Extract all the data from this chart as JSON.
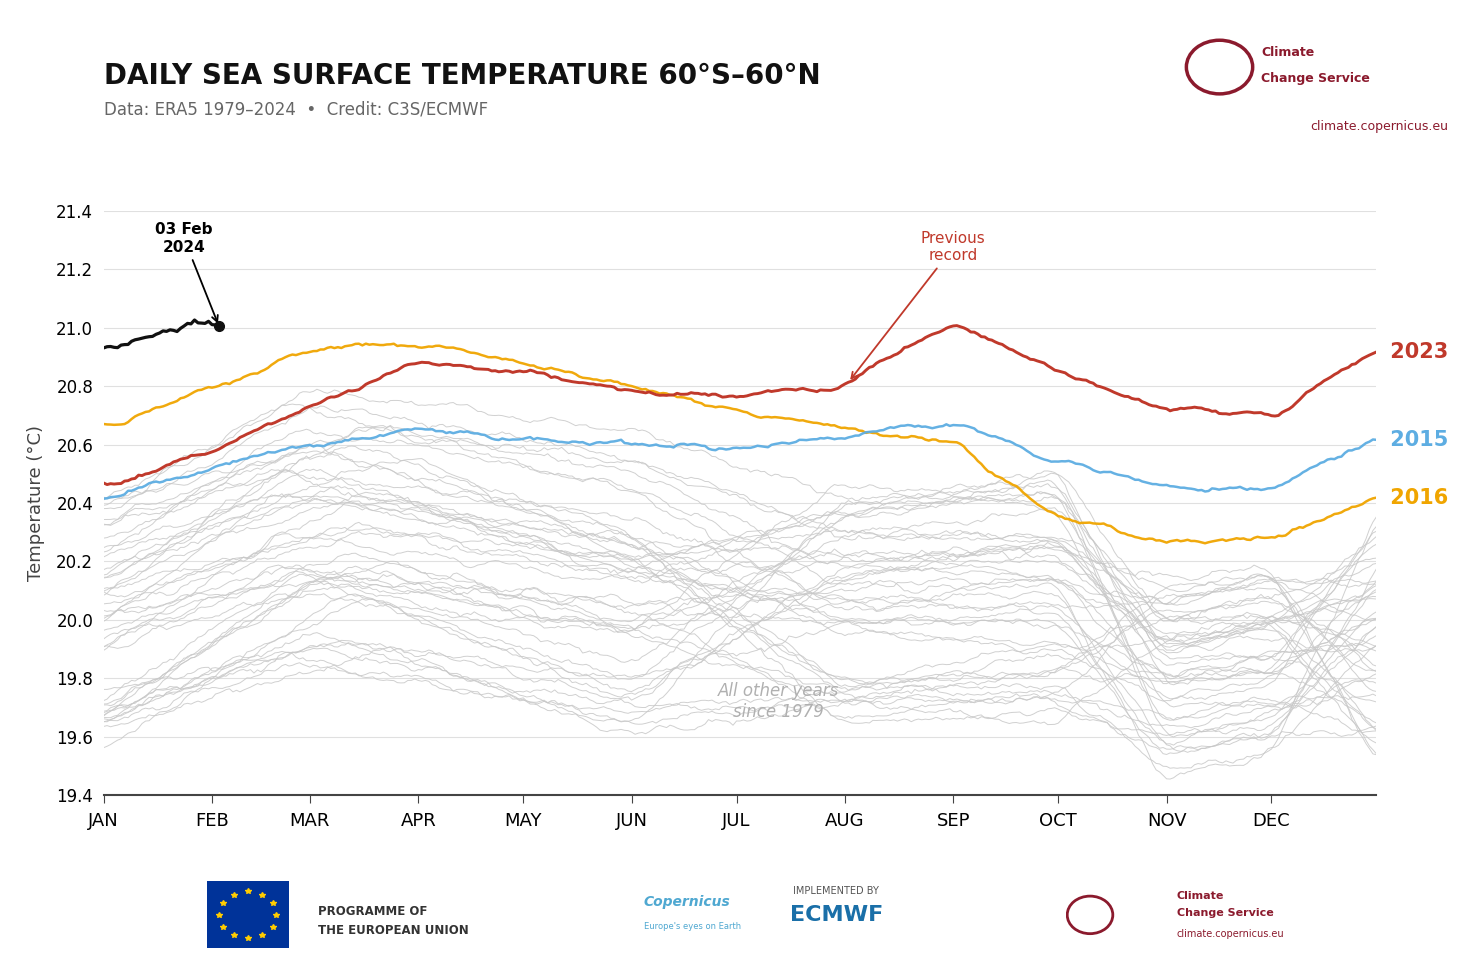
{
  "title": "DAILY SEA SURFACE TEMPERATURE 60°S–60°N",
  "subtitle": "Data: ERA5 1979–2024  •  Credit: C3S/ECMWF",
  "ylabel": "Temperature (°C)",
  "ylim": [
    19.4,
    21.4
  ],
  "yticks": [
    19.4,
    19.6,
    19.8,
    20.0,
    20.2,
    20.4,
    20.6,
    20.8,
    21.0,
    21.2,
    21.4
  ],
  "months": [
    "JAN",
    "FEB",
    "MAR",
    "APR",
    "MAY",
    "JUN",
    "JUL",
    "AUG",
    "SEP",
    "OCT",
    "NOV",
    "DEC"
  ],
  "color_2023": "#c0392b",
  "color_2015": "#5dade2",
  "color_2016": "#f0a500",
  "color_2024": "#111111",
  "color_other": "#c8c8c8",
  "color_grid": "#e0e0e0",
  "color_subtitle": "#666666",
  "bg_color": "#ffffff",
  "annotation_date": "03 Feb\n2024",
  "annotation_record": "Previous\nrecord",
  "annotation_other": "All other years\nsince 1979",
  "label_2023": "2023",
  "label_2015": "2015",
  "label_2016": "2016",
  "website": "climate.copernicus.eu"
}
